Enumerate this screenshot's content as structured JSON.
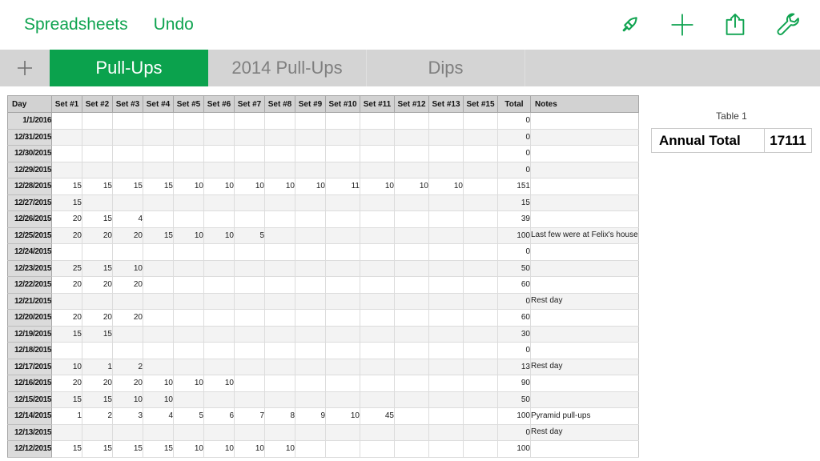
{
  "toolbar": {
    "spreadsheets_label": "Spreadsheets",
    "undo_label": "Undo",
    "actions": [
      {
        "icon": "format-brush-icon"
      },
      {
        "icon": "add-icon"
      },
      {
        "icon": "share-icon"
      },
      {
        "icon": "tools-wrench-icon"
      }
    ]
  },
  "tab_bar": {
    "add_label": "+",
    "tabs": [
      {
        "label": "Pull-Ups",
        "active": true
      },
      {
        "label": "2014 Pull-Ups",
        "active": false
      },
      {
        "label": "Dips",
        "active": false
      }
    ]
  },
  "sheet": {
    "columns": [
      "Day",
      "Set #1",
      "Set #2",
      "Set #3",
      "Set #4",
      "Set #5",
      "Set #6",
      "Set #7",
      "Set #8",
      "Set #9",
      "Set #10",
      "Set #11",
      "Set #12",
      "Set #13",
      "Set #15",
      "Total",
      "Notes"
    ],
    "rows": [
      {
        "day": "1/1/2016",
        "sets": [],
        "total": "0",
        "notes": ""
      },
      {
        "day": "12/31/2015",
        "sets": [],
        "total": "0",
        "notes": ""
      },
      {
        "day": "12/30/2015",
        "sets": [],
        "total": "0",
        "notes": ""
      },
      {
        "day": "12/29/2015",
        "sets": [],
        "total": "0",
        "notes": ""
      },
      {
        "day": "12/28/2015",
        "sets": [
          "15",
          "15",
          "15",
          "15",
          "10",
          "10",
          "10",
          "10",
          "10",
          "11",
          "10",
          "10",
          "10"
        ],
        "total": "151",
        "notes": ""
      },
      {
        "day": "12/27/2015",
        "sets": [
          "15"
        ],
        "total": "15",
        "notes": ""
      },
      {
        "day": "12/26/2015",
        "sets": [
          "20",
          "15",
          "4"
        ],
        "total": "39",
        "notes": ""
      },
      {
        "day": "12/25/2015",
        "sets": [
          "20",
          "20",
          "20",
          "15",
          "10",
          "10",
          "5"
        ],
        "total": "100",
        "notes": "Last few were at Felix's house"
      },
      {
        "day": "12/24/2015",
        "sets": [],
        "total": "0",
        "notes": ""
      },
      {
        "day": "12/23/2015",
        "sets": [
          "25",
          "15",
          "10"
        ],
        "total": "50",
        "notes": ""
      },
      {
        "day": "12/22/2015",
        "sets": [
          "20",
          "20",
          "20"
        ],
        "total": "60",
        "notes": ""
      },
      {
        "day": "12/21/2015",
        "sets": [],
        "total": "0",
        "notes": "Rest day"
      },
      {
        "day": "12/20/2015",
        "sets": [
          "20",
          "20",
          "20"
        ],
        "total": "60",
        "notes": ""
      },
      {
        "day": "12/19/2015",
        "sets": [
          "15",
          "15"
        ],
        "total": "30",
        "notes": ""
      },
      {
        "day": "12/18/2015",
        "sets": [],
        "total": "0",
        "notes": ""
      },
      {
        "day": "12/17/2015",
        "sets": [
          "10",
          "1",
          "2"
        ],
        "total": "13",
        "notes": "Rest day"
      },
      {
        "day": "12/16/2015",
        "sets": [
          "20",
          "20",
          "20",
          "10",
          "10",
          "10"
        ],
        "total": "90",
        "notes": ""
      },
      {
        "day": "12/15/2015",
        "sets": [
          "15",
          "15",
          "10",
          "10"
        ],
        "total": "50",
        "notes": ""
      },
      {
        "day": "12/14/2015",
        "sets": [
          "1",
          "2",
          "3",
          "4",
          "5",
          "6",
          "7",
          "8",
          "9",
          "10",
          "45"
        ],
        "total": "100",
        "notes": "Pyramid pull-ups"
      },
      {
        "day": "12/13/2015",
        "sets": [],
        "total": "0",
        "notes": "Rest day"
      },
      {
        "day": "12/12/2015",
        "sets": [
          "15",
          "15",
          "15",
          "15",
          "10",
          "10",
          "10",
          "10"
        ],
        "total": "100",
        "notes": ""
      }
    ]
  },
  "summary": {
    "caption": "Table 1",
    "label": "Annual Total",
    "value": "17111"
  },
  "colors": {
    "accent_green": "#0FA350",
    "tab_green": "#0BA24D",
    "tab_bar_bg": "#D4D4D4",
    "header_gray": "#D2D2D2",
    "date_col_gray": "#DBDBDB",
    "row_stripe": "#F3F3F3",
    "inactive_tab_text": "#7F7F7F"
  }
}
